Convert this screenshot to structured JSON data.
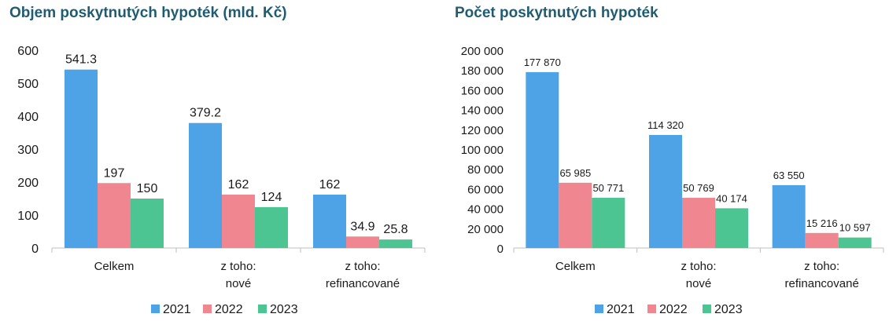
{
  "charts": [
    {
      "title": "Objem poskytnutých hypoték (mld. Kč)",
      "chart_data": {
        "type": "bar",
        "categories": [
          [
            "Celkem"
          ],
          [
            "z toho:",
            "nové"
          ],
          [
            "z toho:",
            "refinancované"
          ]
        ],
        "series": [
          {
            "name": "2021",
            "values": [
              541.3,
              379.2,
              162
            ],
            "labels": [
              "541.3",
              "379.2",
              "162"
            ],
            "color": "#4da3e6"
          },
          {
            "name": "2022",
            "values": [
              197,
              162,
              34.9
            ],
            "labels": [
              "197",
              "162",
              "34.9"
            ],
            "color": "#f08790"
          },
          {
            "name": "2023",
            "values": [
              150,
              124,
              25.8
            ],
            "labels": [
              "150",
              "124",
              "25.8"
            ],
            "color": "#4cc593"
          }
        ],
        "ylim": [
          0,
          600
        ],
        "yticks": [
          0,
          100,
          200,
          300,
          400,
          500,
          600
        ],
        "ytick_labels": [
          "0",
          "100",
          "200",
          "300",
          "400",
          "500",
          "600"
        ],
        "grid": false,
        "legend": "bottom"
      }
    },
    {
      "title": "Počet poskytnutých hypoték",
      "chart_data": {
        "type": "bar",
        "categories": [
          [
            "Celkem"
          ],
          [
            "z toho:",
            "nové"
          ],
          [
            "z toho:",
            "refinancované"
          ]
        ],
        "series": [
          {
            "name": "2021",
            "values": [
              177870,
              114320,
              63550
            ],
            "labels": [
              "177 870",
              "114 320",
              "63 550"
            ],
            "color": "#4da3e6"
          },
          {
            "name": "2022",
            "values": [
              65985,
              50769,
              15216
            ],
            "labels": [
              "65 985",
              "50 769",
              "15 216"
            ],
            "color": "#f08790"
          },
          {
            "name": "2023",
            "values": [
              50771,
              40174,
              10597
            ],
            "labels": [
              "50 771",
              "40 174",
              "10 597"
            ],
            "color": "#4cc593"
          }
        ],
        "ylim": [
          0,
          200000
        ],
        "yticks": [
          0,
          20000,
          40000,
          60000,
          80000,
          100000,
          120000,
          140000,
          160000,
          180000,
          200000
        ],
        "ytick_labels": [
          "0",
          "20 000",
          "40 000",
          "60 000",
          "80 000",
          "100 000",
          "120 000",
          "140 000",
          "160 000",
          "180 000",
          "200 000"
        ],
        "grid": false,
        "legend": "bottom"
      }
    }
  ]
}
